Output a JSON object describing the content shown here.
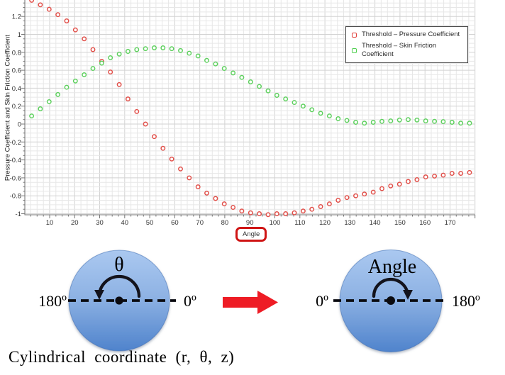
{
  "chart": {
    "y_axis_label": "Pressure Coefficient and Skin Friction Coefficient",
    "x_axis_label": "Angle",
    "x_ticks": [
      10,
      20,
      30,
      40,
      50,
      60,
      70,
      80,
      90,
      100,
      110,
      120,
      130,
      140,
      150,
      160,
      170
    ],
    "y_ticks": [
      1.2,
      1,
      0.8,
      0.6,
      0.4,
      0.2,
      0,
      -0.2,
      -0.4,
      -0.6,
      -0.8,
      -1
    ],
    "legend": [
      {
        "label": "Threshold – Pressure Coefficient",
        "color": "#e1413c"
      },
      {
        "label": "Threshold – Skin Friction Coefficient",
        "color": "#4fcf4f"
      }
    ],
    "colors": {
      "pressure": "#e1504a",
      "skin_friction": "#5ed05e",
      "grid_minor": "#e7e7e7",
      "grid_major": "#d2d2d2",
      "axis": "#8f8f8f",
      "tick": "#777777",
      "angle_box_border": "#cf1414"
    }
  },
  "chart_data": {
    "type": "scatter",
    "title": "",
    "xlabel": "Angle",
    "ylabel": "Pressure Coefficient and Skin Friction Coefficient",
    "xlim": [
      0,
      180
    ],
    "ylim": [
      -1.01,
      1.38
    ],
    "grid": true,
    "legend_position": "top-right",
    "marker": "open-circle",
    "x": [
      2.8,
      6.3,
      9.8,
      13.3,
      16.8,
      20.3,
      23.8,
      27.3,
      30.8,
      34.3,
      37.8,
      41.3,
      44.8,
      48.3,
      51.8,
      55.3,
      58.8,
      62.3,
      65.8,
      69.3,
      72.8,
      76.3,
      79.8,
      83.3,
      86.8,
      90.3,
      93.8,
      97.3,
      100.8,
      104.3,
      107.8,
      111.3,
      114.8,
      118.3,
      121.8,
      125.3,
      128.8,
      132.3,
      135.8,
      139.3,
      142.8,
      146.3,
      149.8,
      153.3,
      156.8,
      160.3,
      163.8,
      167.3,
      170.8,
      174.3,
      177.8
    ],
    "series": [
      {
        "name": "Threshold – Pressure Coefficient",
        "color": "#e1504a",
        "values": [
          1.38,
          1.33,
          1.28,
          1.22,
          1.15,
          1.05,
          0.95,
          0.83,
          0.7,
          0.58,
          0.44,
          0.28,
          0.14,
          0,
          -0.14,
          -0.27,
          -0.39,
          -0.5,
          -0.6,
          -0.7,
          -0.77,
          -0.83,
          -0.89,
          -0.93,
          -0.97,
          -0.99,
          -1,
          -1.01,
          -1,
          -1,
          -0.99,
          -0.97,
          -0.95,
          -0.92,
          -0.89,
          -0.85,
          -0.82,
          -0.8,
          -0.78,
          -0.76,
          -0.72,
          -0.69,
          -0.67,
          -0.64,
          -0.62,
          -0.59,
          -0.58,
          -0.57,
          -0.55,
          -0.55,
          -0.54
        ]
      },
      {
        "name": "Threshold – Skin Friction Coefficient",
        "color": "#5ed05e",
        "values": [
          0.09,
          0.17,
          0.25,
          0.33,
          0.41,
          0.48,
          0.55,
          0.62,
          0.68,
          0.74,
          0.78,
          0.81,
          0.83,
          0.84,
          0.85,
          0.85,
          0.84,
          0.82,
          0.79,
          0.76,
          0.71,
          0.67,
          0.62,
          0.57,
          0.52,
          0.47,
          0.42,
          0.37,
          0.32,
          0.28,
          0.24,
          0.2,
          0.16,
          0.12,
          0.09,
          0.06,
          0.04,
          0.02,
          0.01,
          0.02,
          0.03,
          0.035,
          0.045,
          0.05,
          0.045,
          0.035,
          0.03,
          0.027,
          0.02,
          0.01,
          0.01
        ]
      }
    ]
  },
  "diagram": {
    "left_circle": {
      "top_label": "θ",
      "left_label": "180º",
      "right_label": "0º",
      "rotation": "counterclockwise"
    },
    "right_circle": {
      "top_label": "Angle",
      "left_label": "0º",
      "right_label": "180º",
      "rotation": "clockwise"
    },
    "arrow_color": "#ee1c25",
    "circle_fill_top": "#aac8f0",
    "circle_fill_bottom": "#4f83cc",
    "caption": "Cylindrical coordinate (r, θ, z)"
  }
}
